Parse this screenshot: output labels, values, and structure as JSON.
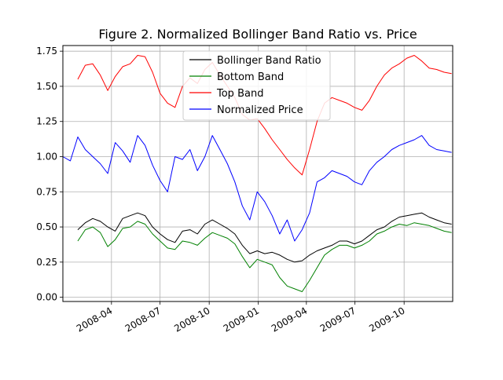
{
  "chart_data": {
    "type": "line",
    "title": "Figure 2. Normalized Bollinger Band Ratio vs. Price",
    "xlabel": "",
    "ylabel": "",
    "xlim": [
      "2008-01-01",
      "2009-12-31"
    ],
    "ylim": [
      -0.03,
      1.79
    ],
    "grid": true,
    "legend_position": "top-center",
    "x_ticks": [
      {
        "date": "2008-04-01",
        "label": "2008-04"
      },
      {
        "date": "2008-07-01",
        "label": "2008-07"
      },
      {
        "date": "2008-10-01",
        "label": "2008-10"
      },
      {
        "date": "2009-01-01",
        "label": "2009-01"
      },
      {
        "date": "2009-04-01",
        "label": "2009-04"
      },
      {
        "date": "2009-07-01",
        "label": "2009-07"
      },
      {
        "date": "2009-10-01",
        "label": "2009-10"
      }
    ],
    "y_ticks": [
      {
        "value": 0.0,
        "label": "0.00"
      },
      {
        "value": 0.25,
        "label": "0.25"
      },
      {
        "value": 0.5,
        "label": "0.50"
      },
      {
        "value": 0.75,
        "label": "0.75"
      },
      {
        "value": 1.0,
        "label": "1.00"
      },
      {
        "value": 1.25,
        "label": "1.25"
      },
      {
        "value": 1.5,
        "label": "1.50"
      },
      {
        "value": 1.75,
        "label": "1.75"
      }
    ],
    "series": [
      {
        "name": "Bollinger Band Ratio",
        "color": "#000000",
        "x": [
          "2008-01-29",
          "2008-02-12",
          "2008-02-26",
          "2008-03-11",
          "2008-03-25",
          "2008-04-08",
          "2008-04-22",
          "2008-05-06",
          "2008-05-20",
          "2008-06-03",
          "2008-06-17",
          "2008-07-01",
          "2008-07-15",
          "2008-07-29",
          "2008-08-12",
          "2008-08-26",
          "2008-09-09",
          "2008-09-23",
          "2008-10-07",
          "2008-10-21",
          "2008-11-04",
          "2008-11-18",
          "2008-12-02",
          "2008-12-16",
          "2008-12-30",
          "2009-01-13",
          "2009-01-27",
          "2009-02-10",
          "2009-02-24",
          "2009-03-10",
          "2009-03-24",
          "2009-04-07",
          "2009-04-21",
          "2009-05-05",
          "2009-05-19",
          "2009-06-02",
          "2009-06-16",
          "2009-06-30",
          "2009-07-14",
          "2009-07-28",
          "2009-08-11",
          "2009-08-25",
          "2009-09-08",
          "2009-09-22",
          "2009-10-06",
          "2009-10-20",
          "2009-11-03",
          "2009-11-17",
          "2009-12-01",
          "2009-12-15",
          "2009-12-29"
        ],
        "y": [
          0.48,
          0.53,
          0.56,
          0.54,
          0.5,
          0.47,
          0.56,
          0.58,
          0.6,
          0.58,
          0.5,
          0.45,
          0.41,
          0.39,
          0.47,
          0.48,
          0.45,
          0.52,
          0.55,
          0.52,
          0.49,
          0.45,
          0.37,
          0.31,
          0.33,
          0.31,
          0.32,
          0.3,
          0.27,
          0.25,
          0.26,
          0.3,
          0.33,
          0.35,
          0.37,
          0.4,
          0.4,
          0.38,
          0.4,
          0.44,
          0.48,
          0.5,
          0.54,
          0.57,
          0.58,
          0.59,
          0.6,
          0.57,
          0.55,
          0.53,
          0.52
        ]
      },
      {
        "name": "Bottom Band",
        "color": "#008000",
        "x": [
          "2008-01-29",
          "2008-02-12",
          "2008-02-26",
          "2008-03-11",
          "2008-03-25",
          "2008-04-08",
          "2008-04-22",
          "2008-05-06",
          "2008-05-20",
          "2008-06-03",
          "2008-06-17",
          "2008-07-01",
          "2008-07-15",
          "2008-07-29",
          "2008-08-12",
          "2008-08-26",
          "2008-09-09",
          "2008-09-23",
          "2008-10-07",
          "2008-10-21",
          "2008-11-04",
          "2008-11-18",
          "2008-12-02",
          "2008-12-16",
          "2008-12-30",
          "2009-01-13",
          "2009-01-27",
          "2009-02-10",
          "2009-02-24",
          "2009-03-10",
          "2009-03-24",
          "2009-04-07",
          "2009-04-21",
          "2009-05-05",
          "2009-05-19",
          "2009-06-02",
          "2009-06-16",
          "2009-06-30",
          "2009-07-14",
          "2009-07-28",
          "2009-08-11",
          "2009-08-25",
          "2009-09-08",
          "2009-09-22",
          "2009-10-06",
          "2009-10-20",
          "2009-11-03",
          "2009-11-17",
          "2009-12-01",
          "2009-12-15",
          "2009-12-29"
        ],
        "y": [
          0.4,
          0.48,
          0.5,
          0.46,
          0.36,
          0.41,
          0.49,
          0.5,
          0.54,
          0.52,
          0.45,
          0.4,
          0.35,
          0.34,
          0.4,
          0.39,
          0.37,
          0.42,
          0.46,
          0.44,
          0.42,
          0.38,
          0.29,
          0.21,
          0.27,
          0.25,
          0.23,
          0.14,
          0.08,
          0.06,
          0.04,
          0.12,
          0.21,
          0.3,
          0.34,
          0.37,
          0.37,
          0.35,
          0.37,
          0.4,
          0.45,
          0.47,
          0.5,
          0.52,
          0.51,
          0.53,
          0.52,
          0.51,
          0.49,
          0.47,
          0.46
        ]
      },
      {
        "name": "Top Band",
        "color": "#ff0000",
        "x": [
          "2008-01-29",
          "2008-02-12",
          "2008-02-26",
          "2008-03-11",
          "2008-03-25",
          "2008-04-08",
          "2008-04-22",
          "2008-05-06",
          "2008-05-20",
          "2008-06-03",
          "2008-06-17",
          "2008-07-01",
          "2008-07-15",
          "2008-07-29",
          "2008-08-12",
          "2008-08-26",
          "2008-09-09",
          "2008-09-23",
          "2008-10-07",
          "2008-10-21",
          "2008-11-04",
          "2008-11-18",
          "2008-12-02",
          "2008-12-16",
          "2008-12-30",
          "2009-01-13",
          "2009-01-27",
          "2009-02-10",
          "2009-02-24",
          "2009-03-10",
          "2009-03-24",
          "2009-04-07",
          "2009-04-21",
          "2009-05-05",
          "2009-05-19",
          "2009-06-02",
          "2009-06-16",
          "2009-06-30",
          "2009-07-14",
          "2009-07-28",
          "2009-08-11",
          "2009-08-25",
          "2009-09-08",
          "2009-09-22",
          "2009-10-06",
          "2009-10-20",
          "2009-11-03",
          "2009-11-17",
          "2009-12-01",
          "2009-12-15",
          "2009-12-29"
        ],
        "y": [
          1.55,
          1.65,
          1.66,
          1.58,
          1.47,
          1.57,
          1.64,
          1.66,
          1.72,
          1.71,
          1.6,
          1.45,
          1.38,
          1.35,
          1.5,
          1.56,
          1.52,
          1.62,
          1.67,
          1.58,
          1.5,
          1.42,
          1.3,
          1.26,
          1.27,
          1.2,
          1.12,
          1.05,
          0.98,
          0.92,
          0.87,
          1.05,
          1.25,
          1.38,
          1.42,
          1.4,
          1.38,
          1.35,
          1.33,
          1.4,
          1.5,
          1.58,
          1.63,
          1.66,
          1.7,
          1.72,
          1.68,
          1.63,
          1.62,
          1.6,
          1.59
        ]
      },
      {
        "name": "Normalized Price",
        "color": "#0000ff",
        "x": [
          "2008-01-01",
          "2008-01-15",
          "2008-01-29",
          "2008-02-12",
          "2008-02-26",
          "2008-03-11",
          "2008-03-25",
          "2008-04-08",
          "2008-04-22",
          "2008-05-06",
          "2008-05-20",
          "2008-06-03",
          "2008-06-17",
          "2008-07-01",
          "2008-07-15",
          "2008-07-29",
          "2008-08-12",
          "2008-08-26",
          "2008-09-09",
          "2008-09-23",
          "2008-10-07",
          "2008-10-21",
          "2008-11-04",
          "2008-11-18",
          "2008-12-02",
          "2008-12-16",
          "2008-12-30",
          "2009-01-13",
          "2009-01-27",
          "2009-02-10",
          "2009-02-24",
          "2009-03-10",
          "2009-03-24",
          "2009-04-07",
          "2009-04-21",
          "2009-05-05",
          "2009-05-19",
          "2009-06-02",
          "2009-06-16",
          "2009-06-30",
          "2009-07-14",
          "2009-07-28",
          "2009-08-11",
          "2009-08-25",
          "2009-09-08",
          "2009-09-22",
          "2009-10-06",
          "2009-10-20",
          "2009-11-03",
          "2009-11-17",
          "2009-12-01",
          "2009-12-15",
          "2009-12-29"
        ],
        "y": [
          1.0,
          0.97,
          1.14,
          1.05,
          1.0,
          0.95,
          0.88,
          1.1,
          1.04,
          0.96,
          1.15,
          1.08,
          0.94,
          0.83,
          0.75,
          1.0,
          0.98,
          1.05,
          0.9,
          1.0,
          1.15,
          1.05,
          0.95,
          0.82,
          0.65,
          0.55,
          0.75,
          0.68,
          0.58,
          0.45,
          0.55,
          0.4,
          0.48,
          0.6,
          0.82,
          0.85,
          0.9,
          0.88,
          0.86,
          0.82,
          0.8,
          0.9,
          0.96,
          1.0,
          1.05,
          1.08,
          1.1,
          1.12,
          1.15,
          1.08,
          1.05,
          1.04,
          1.03
        ]
      }
    ]
  }
}
